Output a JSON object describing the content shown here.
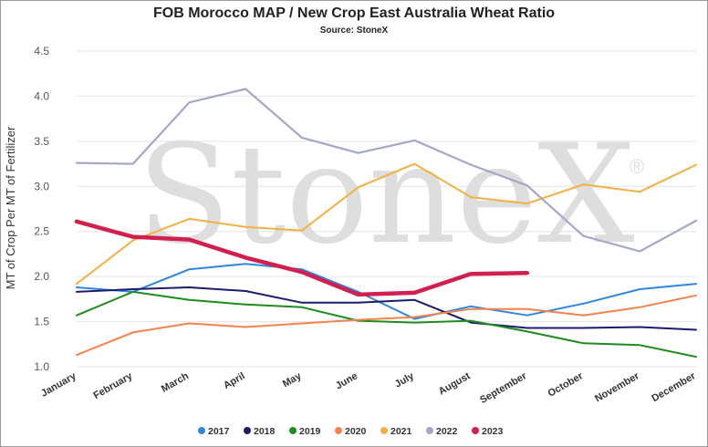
{
  "chart_data": {
    "type": "line",
    "title": "FOB Morocco MAP / New Crop East Australia Wheat Ratio",
    "subtitle": "Source: StoneX",
    "ylabel": "MT of Crop Per MT of Fertilizer",
    "xlabel": "",
    "watermark": "StoneX",
    "watermark_mark": "®",
    "ylim": [
      1.0,
      4.5
    ],
    "yticks": [
      "1.0",
      "1.5",
      "2.0",
      "2.5",
      "3.0",
      "3.5",
      "4.0",
      "4.5"
    ],
    "grid": true,
    "legend_position": "bottom",
    "categories": [
      "January",
      "February",
      "March",
      "April",
      "May",
      "June",
      "July",
      "August",
      "September",
      "October",
      "November",
      "December"
    ],
    "series": [
      {
        "name": "2017",
        "color": "#2e86de",
        "width": 2,
        "values": [
          1.88,
          1.83,
          2.08,
          2.14,
          2.08,
          1.83,
          1.53,
          1.67,
          1.57,
          1.7,
          1.86,
          1.92
        ]
      },
      {
        "name": "2018",
        "color": "#1c1c6b",
        "width": 2,
        "values": [
          1.83,
          1.86,
          1.88,
          1.84,
          1.71,
          1.71,
          1.74,
          1.49,
          1.43,
          1.43,
          1.44,
          1.41
        ]
      },
      {
        "name": "2019",
        "color": "#1e8c1e",
        "width": 2,
        "values": [
          1.57,
          1.83,
          1.74,
          1.69,
          1.66,
          1.51,
          1.49,
          1.51,
          1.39,
          1.26,
          1.24,
          1.11
        ]
      },
      {
        "name": "2020",
        "color": "#f4844c",
        "width": 2,
        "values": [
          1.13,
          1.38,
          1.48,
          1.44,
          1.48,
          1.52,
          1.55,
          1.64,
          1.64,
          1.57,
          1.66,
          1.79
        ]
      },
      {
        "name": "2021",
        "color": "#f4b042",
        "width": 2,
        "values": [
          1.92,
          2.4,
          2.64,
          2.55,
          2.51,
          2.99,
          3.25,
          2.88,
          2.81,
          3.02,
          2.94,
          3.24
        ]
      },
      {
        "name": "2022",
        "color": "#a5a7c9",
        "width": 2.2,
        "values": [
          3.26,
          3.25,
          3.93,
          4.08,
          3.54,
          3.37,
          3.51,
          3.24,
          3.01,
          2.45,
          2.28,
          2.62
        ]
      },
      {
        "name": "2023",
        "color": "#d1204f",
        "width": 4.5,
        "values": [
          2.61,
          2.44,
          2.41,
          2.21,
          2.05,
          1.8,
          1.82,
          2.03,
          2.04,
          null,
          null,
          null
        ]
      }
    ]
  }
}
